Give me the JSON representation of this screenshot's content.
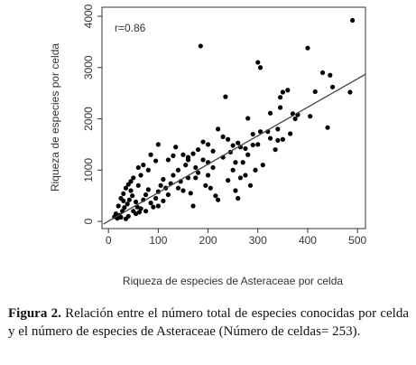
{
  "chart_data": {
    "type": "scatter",
    "x_label": "Riqueza de especies de Asteraceae por celda",
    "y_label": "Riqueza de especies por celda",
    "annotation": "r=0.86",
    "color": "#000000",
    "xlim": [
      -13,
      516
    ],
    "ylim": [
      -140,
      4176
    ],
    "xticks": [
      0,
      100,
      200,
      300,
      400,
      500
    ],
    "yticks": [
      0,
      1000,
      2000,
      3000,
      4000
    ],
    "trend_line": {
      "x": [
        -10,
        516
      ],
      "y": [
        -50,
        2870
      ]
    },
    "x": [
      185,
      300,
      305,
      235,
      400,
      490,
      430,
      445,
      450,
      485,
      415,
      440,
      405,
      350,
      345,
      360,
      345,
      325,
      380,
      375,
      365,
      340,
      325,
      300,
      290,
      305,
      280,
      275,
      265,
      260,
      250,
      240,
      220,
      200,
      210,
      180,
      170,
      160,
      150,
      135,
      130,
      100,
      95,
      85,
      70,
      60,
      50,
      45,
      40,
      35,
      30,
      25,
      20,
      15,
      12,
      18,
      22,
      28,
      32,
      38,
      42,
      48,
      55,
      58,
      62,
      65,
      70,
      75,
      80,
      85,
      90,
      95,
      100,
      105,
      110,
      115,
      120,
      125,
      130,
      140,
      145,
      150,
      155,
      160,
      165,
      170,
      175,
      180,
      190,
      195,
      200,
      205,
      210,
      215,
      220,
      230,
      240,
      250,
      255,
      260,
      265,
      270,
      275,
      280,
      285,
      295,
      310,
      320,
      335,
      340,
      350,
      370,
      255,
      230,
      190,
      120,
      110,
      60,
      40,
      35,
      25,
      50,
      45,
      30,
      80,
      75,
      65,
      55,
      100,
      140,
      160,
      175,
      200,
      245,
      290
    ],
    "y": [
      3420,
      3100,
      3000,
      2430,
      3380,
      3920,
      2900,
      2850,
      2620,
      2520,
      2530,
      1830,
      2050,
      2520,
      2420,
      2560,
      2220,
      2110,
      2080,
      2000,
      1710,
      1580,
      1620,
      1500,
      1490,
      1750,
      2010,
      1420,
      1450,
      1530,
      1480,
      1600,
      1800,
      1500,
      1370,
      1400,
      1320,
      1200,
      1300,
      1450,
      1280,
      1500,
      1180,
      1300,
      1100,
      1050,
      850,
      780,
      720,
      650,
      540,
      450,
      300,
      150,
      90,
      60,
      120,
      200,
      270,
      340,
      420,
      500,
      380,
      280,
      180,
      250,
      420,
      520,
      620,
      360,
      280,
      450,
      580,
      700,
      820,
      650,
      520,
      740,
      900,
      1000,
      780,
      600,
      1100,
      850,
      550,
      300,
      1050,
      950,
      1200,
      700,
      900,
      650,
      1050,
      500,
      420,
      1250,
      800,
      1000,
      600,
      450,
      850,
      1150,
      900,
      1300,
      700,
      1000,
      1100,
      1750,
      1400,
      1800,
      1600,
      2100,
      1150,
      1650,
      1550,
      1200,
      400,
      700,
      100,
      50,
      80,
      200,
      600,
      400,
      1000,
      200,
      900,
      150,
      300,
      650,
      1250,
      850,
      1150,
      1350,
      1700
    ]
  },
  "caption": {
    "label": "Figura 2.",
    "text": "Relación entre el número total de especies conocidas por celda y el número de especies de Asteraceae (Número de celdas= 253)."
  }
}
